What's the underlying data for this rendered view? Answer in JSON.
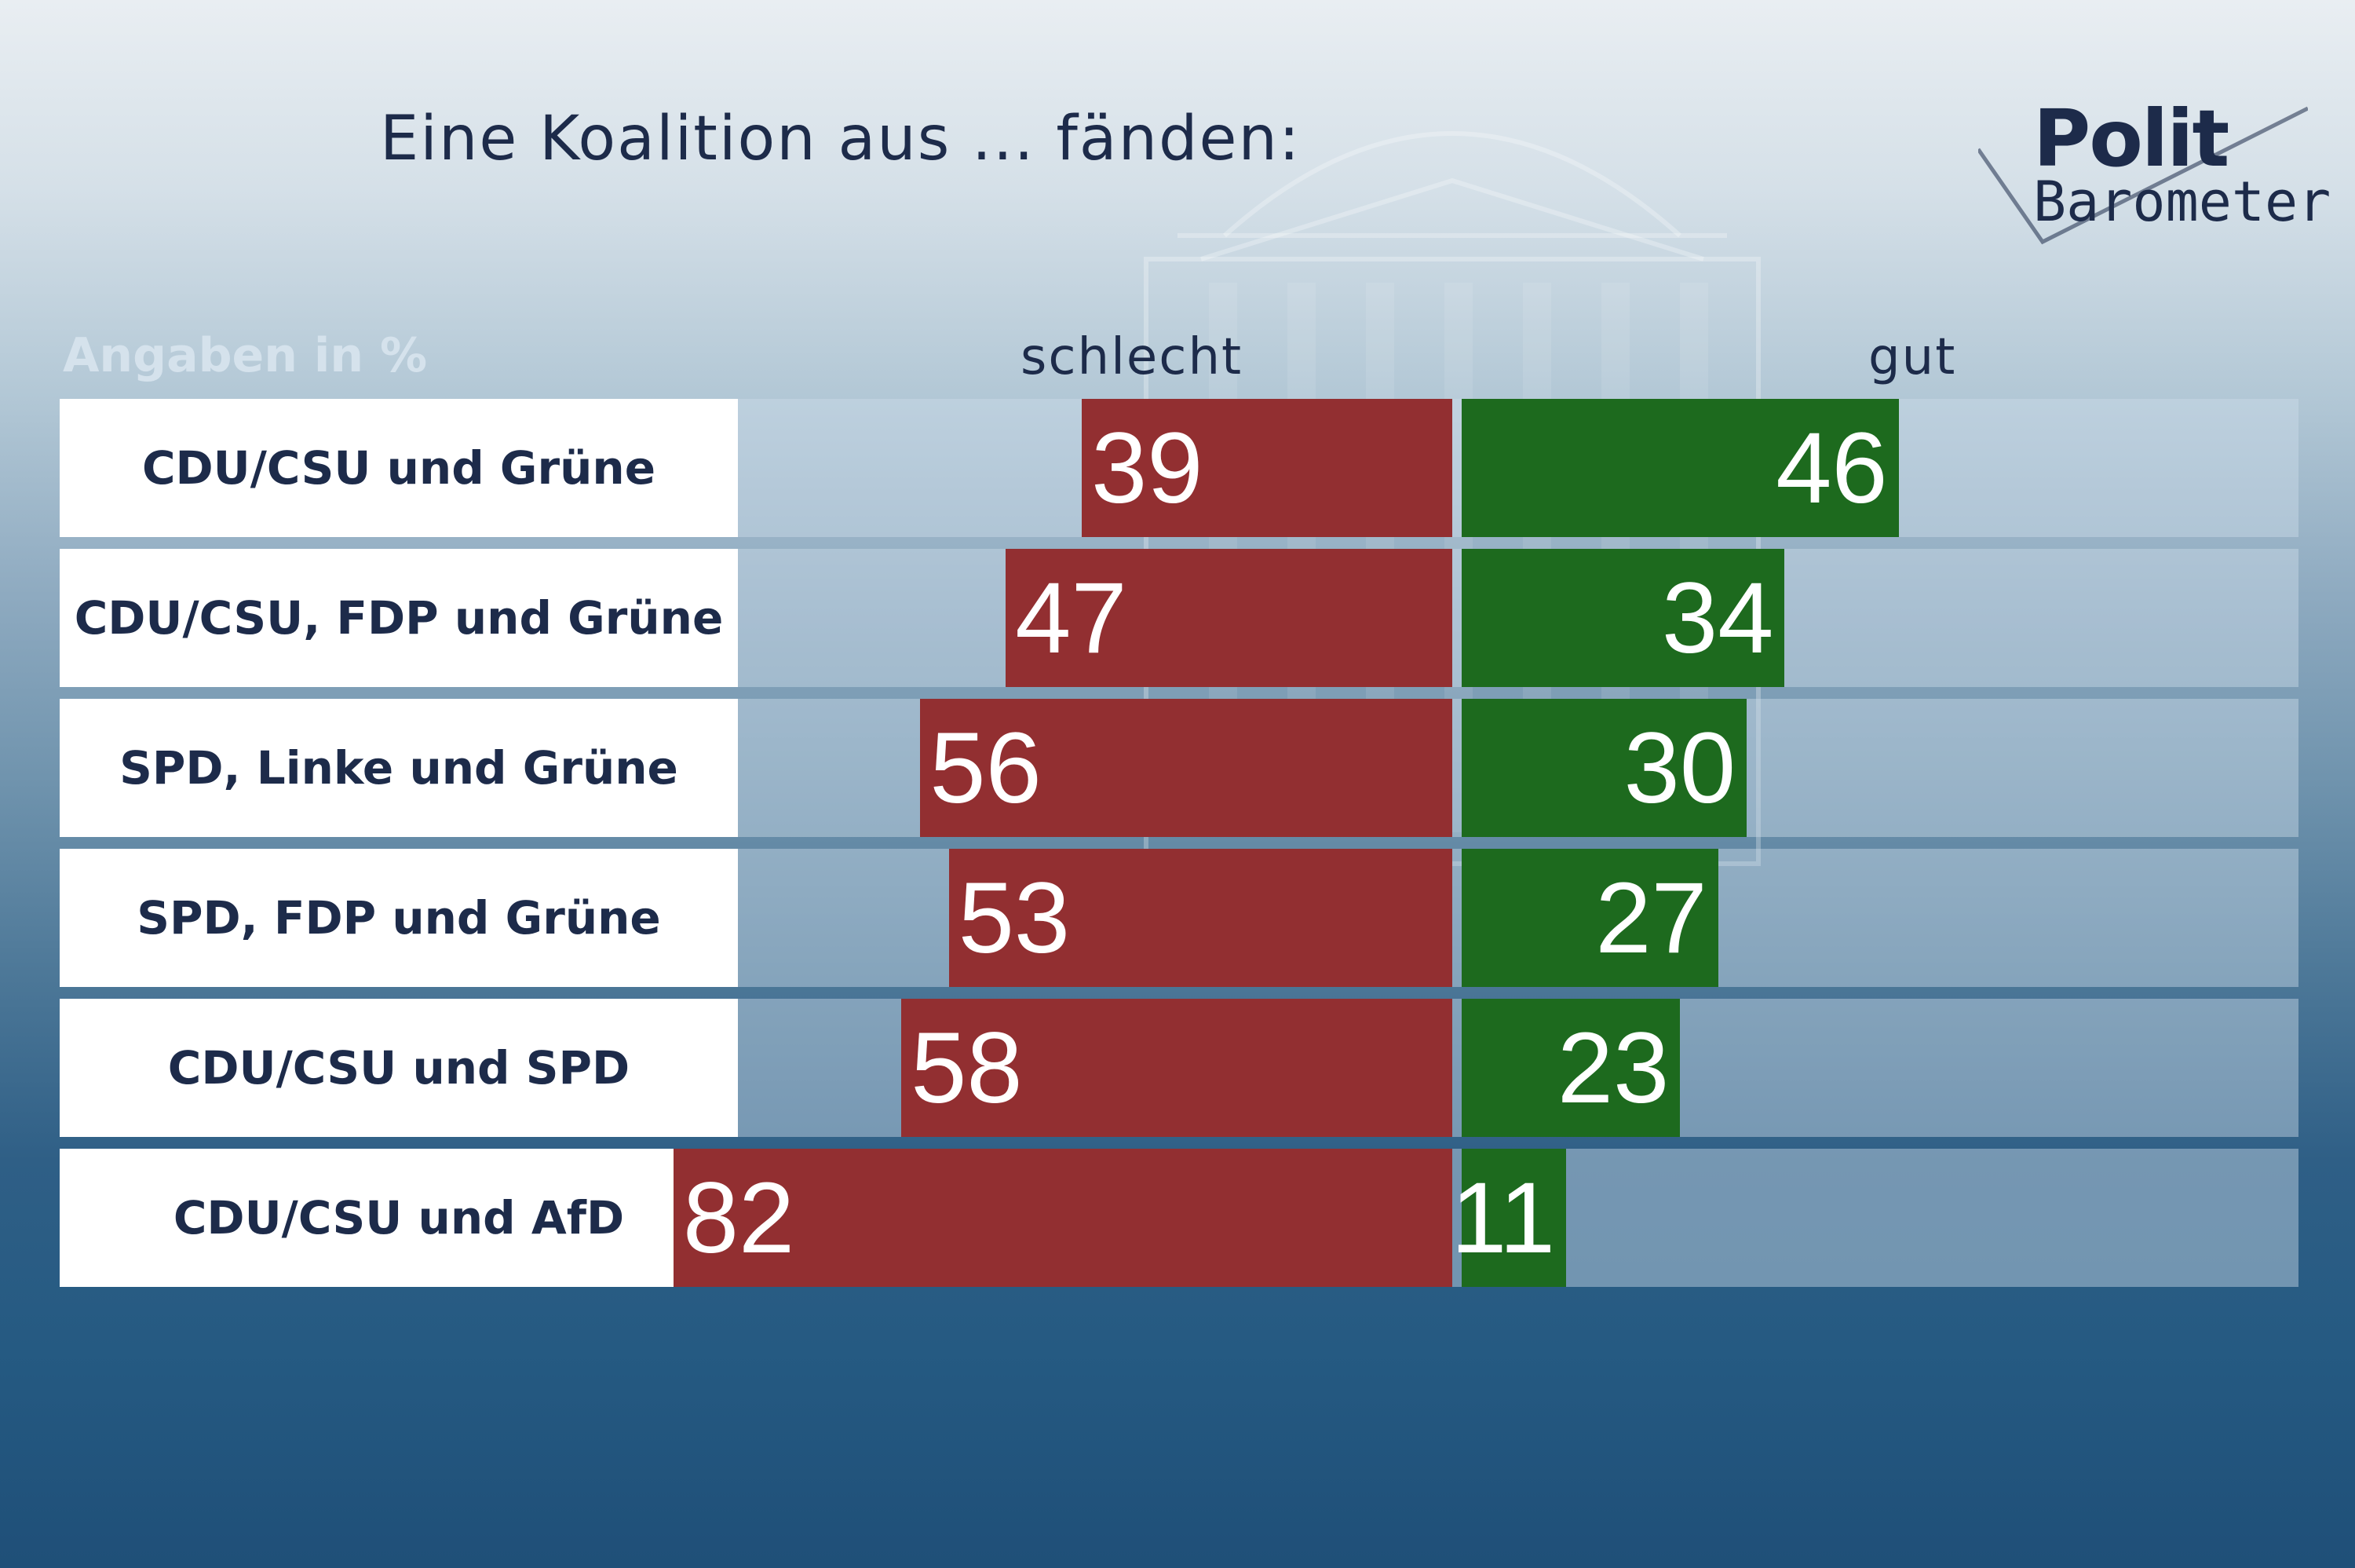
{
  "title": "Eine Koalition aus ... fänden:",
  "logo": {
    "line1": "Polit",
    "line2": "Barometer"
  },
  "unit_label": "Angaben in %",
  "colors": {
    "negative": "#922f31",
    "positive": "#1d6a1e",
    "label_bg": "#ffffff",
    "text_dark": "#1d2b4a"
  },
  "chart_data": {
    "type": "bar",
    "orientation": "horizontal-diverging",
    "title": "Eine Koalition aus ... fänden:",
    "categories": [
      "CDU/CSU und Grüne",
      "CDU/CSU, FDP und Grüne",
      "SPD, Linke und Grüne",
      "SPD, FDP und Grüne",
      "CDU/CSU und SPD",
      "CDU/CSU und AfD"
    ],
    "series": [
      {
        "name": "schlecht",
        "values": [
          39,
          47,
          56,
          53,
          58,
          82
        ]
      },
      {
        "name": "gut",
        "values": [
          46,
          34,
          30,
          27,
          23,
          11
        ]
      }
    ],
    "xlim": [
      0,
      85
    ]
  }
}
